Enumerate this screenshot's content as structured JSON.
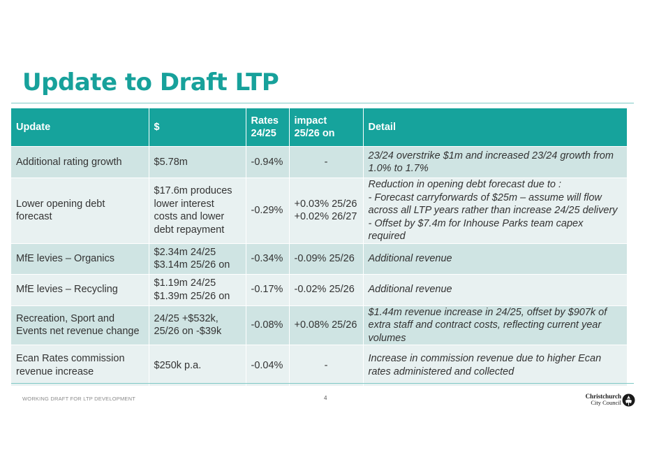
{
  "title": "Update to Draft LTP",
  "table": {
    "headers": {
      "update": "Update",
      "dollar": "$",
      "rates": "Rates\n24/25",
      "impact": "impact\n25/26 on",
      "detail": "Detail"
    },
    "rows": [
      {
        "update": "Additional rating growth",
        "dollar": "$5.78m",
        "rates": "-0.94%",
        "impact": "-",
        "detail": "23/24 overstrike $1m and increased 23/24 growth from 1.0% to 1.7%"
      },
      {
        "update": "Lower opening debt forecast",
        "dollar": "$17.6m produces lower interest costs and lower debt repayment",
        "rates": "-0.29%",
        "impact": "+0.03% 25/26\n+0.02% 26/27",
        "detail": "Reduction in opening debt forecast due to :\n- Forecast carryforwards of $25m – assume will flow across all LTP years rather than increase 24/25 delivery\n- Offset by $7.4m for Inhouse Parks team capex required"
      },
      {
        "update": "MfE levies – Organics",
        "dollar": "$2.34m 24/25\n$3.14m 25/26 on",
        "rates": "-0.34%",
        "impact": "-0.09% 25/26",
        "detail": "Additional revenue"
      },
      {
        "update": "MfE levies – Recycling",
        "dollar": "$1.19m 24/25\n$1.39m 25/26 on",
        "rates": "-0.17%",
        "impact": "-0.02% 25/26",
        "detail": "Additional revenue"
      },
      {
        "update": "Recreation, Sport and Events net revenue change",
        "dollar": "24/25 +$532k,\n25/26 on -$39k",
        "rates": "-0.08%",
        "impact": "+0.08% 25/26",
        "detail": "$1.44m revenue increase in 24/25, offset by $907k of extra staff and contract costs, reflecting  current year volumes"
      },
      {
        "update": "Ecan Rates commission revenue increase",
        "dollar": "$250k p.a.",
        "rates": "-0.04%",
        "impact": "-",
        "detail": "Increase in commission revenue due to higher Ecan rates administered and collected"
      }
    ]
  },
  "footer": {
    "left": "WORKING DRAFT FOR LTP DEVELOPMENT",
    "page": "4",
    "logo_line1": "Christchurch",
    "logo_line2": "City Council"
  },
  "colors": {
    "accent": "#16a39c",
    "update_text": "#d02c5d",
    "row_dark": "#cfe4e3",
    "row_light": "#e8f1f1"
  }
}
